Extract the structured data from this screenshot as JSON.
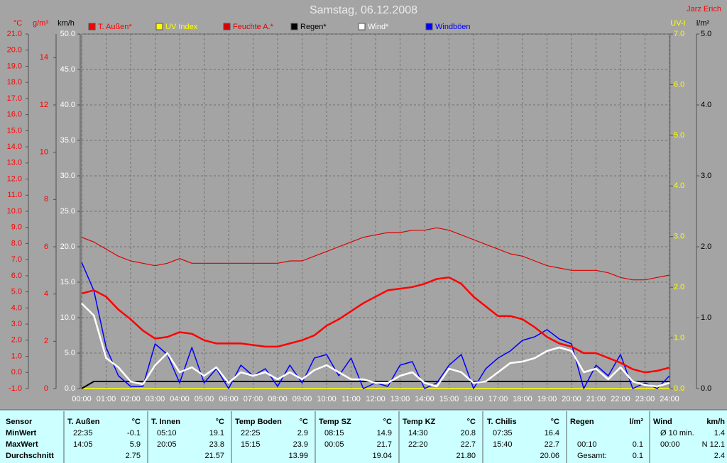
{
  "chart_data": {
    "type": "line",
    "title": "Samstag, 06.12.2008",
    "author": "Jarz Erich",
    "grid": true,
    "xlim": [
      0,
      24
    ],
    "xticks": [
      {
        "value": 0,
        "label": "00:00"
      },
      {
        "value": 1,
        "label": "01:00"
      },
      {
        "value": 2,
        "label": "02:00"
      },
      {
        "value": 3,
        "label": "03:00"
      },
      {
        "value": 4,
        "label": "04:00"
      },
      {
        "value": 5,
        "label": "05:00"
      },
      {
        "value": 6,
        "label": "06:00"
      },
      {
        "value": 7,
        "label": "07:00"
      },
      {
        "value": 8,
        "label": "08:00"
      },
      {
        "value": 9,
        "label": "09:00"
      },
      {
        "value": 10,
        "label": "10:00"
      },
      {
        "value": 11,
        "label": "11:00"
      },
      {
        "value": 12,
        "label": "12:00"
      },
      {
        "value": 13,
        "label": "13:00"
      },
      {
        "value": 14,
        "label": "14:00"
      },
      {
        "value": 15,
        "label": "15:00"
      },
      {
        "value": 16,
        "label": "16:00"
      },
      {
        "value": 17,
        "label": "17:00"
      },
      {
        "value": 18,
        "label": "18:00"
      },
      {
        "value": 19,
        "label": "19:00"
      },
      {
        "value": 20,
        "label": "20:00"
      },
      {
        "value": 21,
        "label": "21:00"
      },
      {
        "value": 22,
        "label": "22:00"
      },
      {
        "value": 23,
        "label": "23:00"
      },
      {
        "value": 24,
        "label": "24:00"
      }
    ],
    "y_axes": [
      {
        "label": "°C",
        "color": "#ff0000",
        "side": "left",
        "ylim": [
          -1,
          21
        ],
        "yticks": [
          {
            "value": -1,
            "label": "-1.0"
          },
          {
            "value": 0,
            "label": "0.0"
          },
          {
            "value": 1,
            "label": "1.0"
          },
          {
            "value": 2,
            "label": "2.0"
          },
          {
            "value": 3,
            "label": "3.0"
          },
          {
            "value": 4,
            "label": "4.0"
          },
          {
            "value": 5,
            "label": "5.0"
          },
          {
            "value": 6,
            "label": "6.0"
          },
          {
            "value": 7,
            "label": "7.0"
          },
          {
            "value": 8,
            "label": "8.0"
          },
          {
            "value": 9,
            "label": "9.0"
          },
          {
            "value": 10,
            "label": "10.0"
          },
          {
            "value": 11,
            "label": "11.0"
          },
          {
            "value": 12,
            "label": "12.0"
          },
          {
            "value": 13,
            "label": "13.0"
          },
          {
            "value": 14,
            "label": "14.0"
          },
          {
            "value": 15,
            "label": "15.0"
          },
          {
            "value": 16,
            "label": "16.0"
          },
          {
            "value": 17,
            "label": "17.0"
          },
          {
            "value": 18,
            "label": "18.0"
          },
          {
            "value": 19,
            "label": "19.0"
          },
          {
            "value": 20,
            "label": "20.0"
          },
          {
            "value": 21,
            "label": "21.0"
          }
        ]
      },
      {
        "label": "g/m³",
        "color": "#ff0000",
        "side": "left",
        "ylim": [
          0,
          15
        ],
        "yticks": [
          0,
          2,
          4,
          6,
          8,
          10,
          12,
          14
        ]
      },
      {
        "label": "km/h",
        "color": "#ffffff",
        "side": "left",
        "ylim": [
          0,
          50
        ],
        "yticks": [
          {
            "value": 0,
            "label": "0.0"
          },
          {
            "value": 5,
            "label": "5.0"
          },
          {
            "value": 10,
            "label": "10.0"
          },
          {
            "value": 15,
            "label": "15.0"
          },
          {
            "value": 20,
            "label": "20.0"
          },
          {
            "value": 25,
            "label": "25.0"
          },
          {
            "value": 30,
            "label": "30.0"
          },
          {
            "value": 35,
            "label": "35.0"
          },
          {
            "value": 40,
            "label": "40.0"
          },
          {
            "value": 45,
            "label": "45.0"
          },
          {
            "value": 50,
            "label": "50.0"
          }
        ]
      },
      {
        "label": "UV-I",
        "color": "#ffff00",
        "side": "right",
        "ylim": [
          0,
          7
        ],
        "yticks": [
          {
            "value": 0,
            "label": "0.0"
          },
          {
            "value": 1,
            "label": "1.0"
          },
          {
            "value": 2,
            "label": "2.0"
          },
          {
            "value": 3,
            "label": "3.0"
          },
          {
            "value": 4,
            "label": "4.0"
          },
          {
            "value": 5,
            "label": "5.0"
          },
          {
            "value": 6,
            "label": "6.0"
          },
          {
            "value": 7,
            "label": "7.0"
          }
        ]
      },
      {
        "label": "l/m²",
        "color": "#000000",
        "side": "right",
        "ylim": [
          0,
          5
        ],
        "yticks": [
          {
            "value": 0,
            "label": "0.0"
          },
          {
            "value": 1,
            "label": "1.0"
          },
          {
            "value": 2,
            "label": "2.0"
          },
          {
            "value": 3,
            "label": "3.0"
          },
          {
            "value": 4,
            "label": "4.0"
          },
          {
            "value": 5,
            "label": "5.0"
          }
        ]
      }
    ],
    "x": [
      0,
      0.5,
      1,
      1.5,
      2,
      2.5,
      3,
      3.5,
      4,
      4.5,
      5,
      5.5,
      6,
      6.5,
      7,
      7.5,
      8,
      8.5,
      9,
      9.5,
      10,
      10.5,
      11,
      11.5,
      12,
      12.5,
      13,
      13.5,
      14,
      14.5,
      15,
      15.5,
      16,
      16.5,
      17,
      17.5,
      18,
      18.5,
      19,
      19.5,
      20,
      20.5,
      21,
      21.5,
      22,
      22.5,
      23,
      23.5,
      24
    ],
    "series": [
      {
        "name": "T. Außen*",
        "color": "#ff0000",
        "axis": 0,
        "values": [
          4.9,
          5.1,
          4.7,
          3.9,
          3.3,
          2.6,
          2.1,
          2.2,
          2.5,
          2.4,
          2.0,
          1.8,
          1.8,
          1.8,
          1.7,
          1.6,
          1.6,
          1.8,
          2.0,
          2.3,
          2.9,
          3.3,
          3.8,
          4.3,
          4.7,
          5.1,
          5.2,
          5.3,
          5.5,
          5.8,
          5.9,
          5.5,
          4.7,
          4.1,
          3.5,
          3.5,
          3.3,
          2.8,
          2.2,
          1.8,
          1.6,
          1.2,
          1.2,
          0.9,
          0.6,
          0.2,
          0.0,
          0.1,
          0.3
        ]
      },
      {
        "name": "UV Index",
        "color": "#ffff00",
        "axis": 3,
        "values": [
          0,
          0,
          0,
          0,
          0,
          0,
          0,
          0,
          0,
          0,
          0,
          0,
          0,
          0,
          0,
          0,
          0,
          0,
          0,
          0,
          0,
          0,
          0,
          0,
          0,
          0,
          0,
          0,
          0,
          0,
          0,
          0,
          0,
          0,
          0,
          0,
          0,
          0,
          0,
          0,
          0,
          0,
          0,
          0,
          0,
          0,
          0,
          0,
          0
        ]
      },
      {
        "name": "Feuchte A.*",
        "color": "#dd0000",
        "axis": 1,
        "values": [
          6.4,
          6.2,
          5.9,
          5.6,
          5.4,
          5.3,
          5.2,
          5.3,
          5.5,
          5.3,
          5.3,
          5.3,
          5.3,
          5.3,
          5.3,
          5.3,
          5.3,
          5.4,
          5.4,
          5.6,
          5.8,
          6.0,
          6.2,
          6.4,
          6.5,
          6.6,
          6.6,
          6.7,
          6.7,
          6.8,
          6.7,
          6.5,
          6.3,
          6.1,
          5.9,
          5.7,
          5.6,
          5.4,
          5.2,
          5.1,
          5.0,
          5.0,
          5.0,
          4.9,
          4.7,
          4.6,
          4.6,
          4.7,
          4.8
        ]
      },
      {
        "name": "Regen*",
        "color": "#000000",
        "axis": 4,
        "values": [
          0.0,
          0.1,
          0.1,
          0.1,
          0.1,
          0.1,
          0.1,
          0.1,
          0.1,
          0.1,
          0.1,
          0.1,
          0.1,
          0.1,
          0.1,
          0.1,
          0.1,
          0.1,
          0.1,
          0.1,
          0.1,
          0.1,
          0.1,
          0.1,
          0.1,
          0.1,
          0.1,
          0.1,
          0.1,
          0.1,
          0.1,
          0.1,
          0.1,
          0.1,
          0.1,
          0.1,
          0.1,
          0.1,
          0.1,
          0.1,
          0.1,
          0.1,
          0.1,
          0.1,
          0.1,
          0.1,
          0.1,
          0.1,
          0.1
        ]
      },
      {
        "name": "Wind*",
        "color": "#ffffff",
        "axis": 2,
        "values": [
          12.0,
          10.3,
          4.3,
          3.0,
          1.0,
          0.6,
          3.3,
          5.0,
          2.3,
          3.0,
          1.8,
          3.0,
          0.8,
          2.3,
          1.8,
          2.3,
          1.3,
          2.3,
          1.3,
          2.6,
          3.3,
          2.3,
          1.3,
          1.3,
          0.8,
          0.8,
          1.8,
          2.3,
          0.8,
          0.3,
          2.8,
          2.3,
          0.8,
          1.0,
          2.3,
          3.6,
          3.8,
          4.3,
          5.3,
          5.8,
          5.3,
          2.3,
          2.8,
          1.3,
          3.0,
          1.0,
          0.5,
          0.3,
          0.8
        ]
      },
      {
        "name": "Windböen",
        "color": "#0000ff",
        "axis": 2,
        "values": [
          17.8,
          13.8,
          5.8,
          1.8,
          0.3,
          0.3,
          6.3,
          4.8,
          0.8,
          5.8,
          0.8,
          2.8,
          0.0,
          3.3,
          1.8,
          2.8,
          0.3,
          3.3,
          0.8,
          4.3,
          4.8,
          1.8,
          4.3,
          0.0,
          0.8,
          0.3,
          3.3,
          3.8,
          0.0,
          0.8,
          3.3,
          4.8,
          0.0,
          2.8,
          4.3,
          5.3,
          6.8,
          7.3,
          8.3,
          7.0,
          6.3,
          0.0,
          3.3,
          1.8,
          4.8,
          0.0,
          0.8,
          0.0,
          1.8
        ]
      }
    ]
  },
  "table": {
    "header": [
      {
        "left": "Sensor"
      },
      {
        "left": "T. Außen",
        "right": "°C"
      },
      {
        "left": "T. Innen",
        "right": "°C"
      },
      {
        "left": "Temp Boden",
        "right": "°C"
      },
      {
        "left": "Temp SZ",
        "right": "°C"
      },
      {
        "left": "Temp KZ",
        "right": "°C"
      },
      {
        "left": "T. Chilis",
        "right": "°C"
      },
      {
        "left": "Regen",
        "right": "l/m²"
      },
      {
        "left": "Wind",
        "right": "km/h"
      }
    ],
    "rows": [
      [
        {
          "left": "MinWert"
        },
        {
          "left": "22:35",
          "right": "-0.1"
        },
        {
          "left": "05:10",
          "right": "19.1"
        },
        {
          "left": "22:25",
          "right": "2.9"
        },
        {
          "left": "08:15",
          "right": "14.9"
        },
        {
          "left": "14:30",
          "right": "20.8"
        },
        {
          "left": "07:35",
          "right": "16.4"
        },
        {},
        {
          "left": "Ø 10 min.",
          "right": "1.4"
        }
      ],
      [
        {
          "left": "MaxWert"
        },
        {
          "left": "14:05",
          "right": "5.9"
        },
        {
          "left": "20:05",
          "right": "23.8"
        },
        {
          "left": "15:15",
          "right": "23.9"
        },
        {
          "left": "00:05",
          "right": "21.7"
        },
        {
          "left": "22:20",
          "right": "22.7"
        },
        {
          "left": "15:40",
          "right": "22.7"
        },
        {
          "left": "00:10",
          "right": "0.1"
        },
        {
          "left": "00:00",
          "right": "N 12.1"
        }
      ],
      [
        {
          "left": "Durchschnitt"
        },
        {
          "right": "2.75"
        },
        {
          "right": "21.57"
        },
        {
          "right": "13.99"
        },
        {
          "right": "19.04"
        },
        {
          "right": "21.80"
        },
        {
          "right": "20.06"
        },
        {
          "left": "Gesamt:",
          "right": "0.1"
        },
        {
          "right": "2.4"
        }
      ]
    ]
  }
}
